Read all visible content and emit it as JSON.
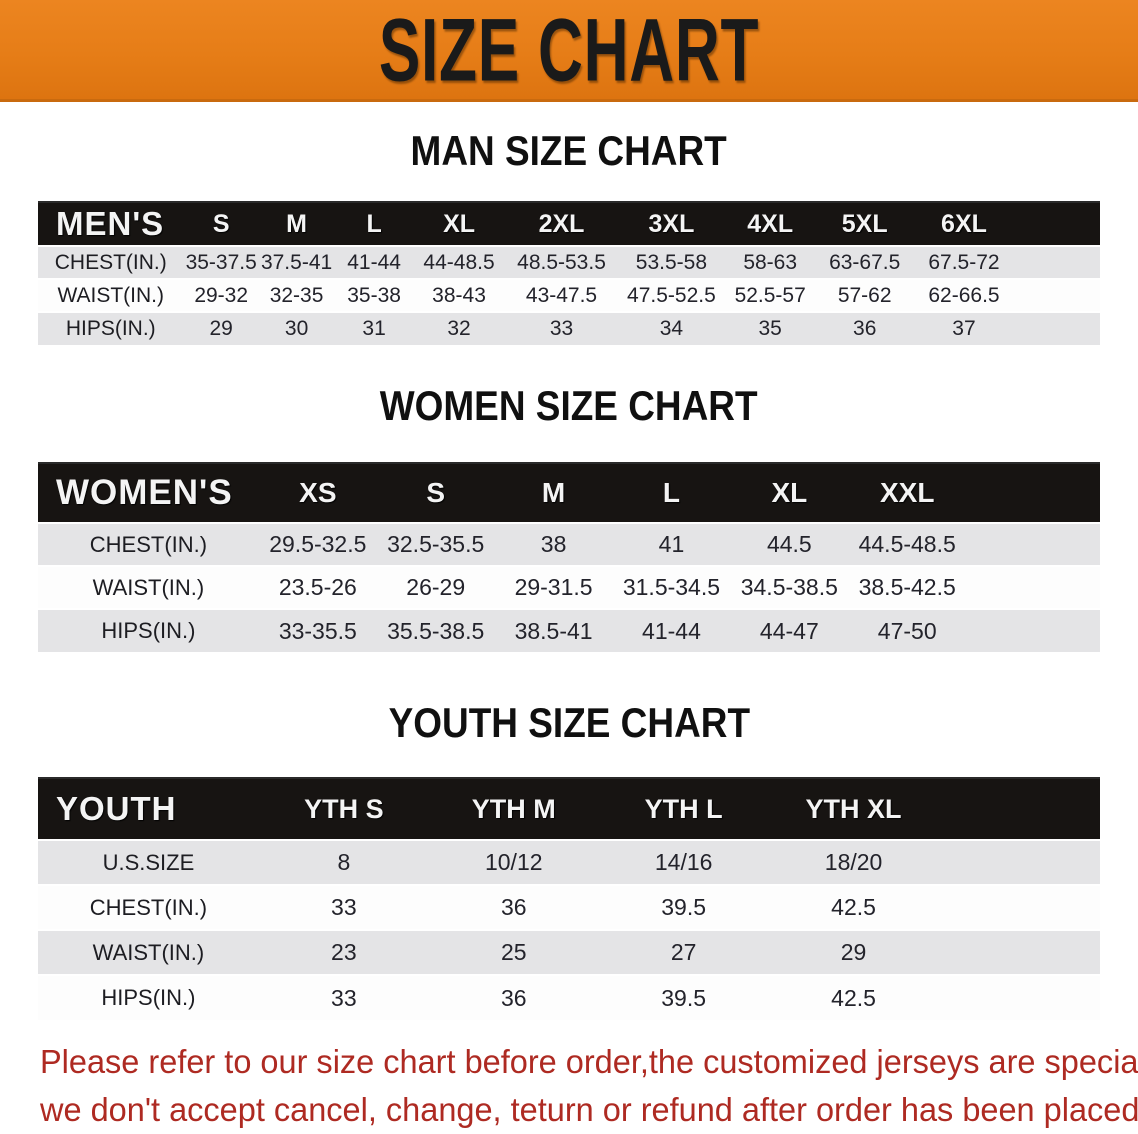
{
  "banner": {
    "title": "SIZE CHART"
  },
  "chart_data": [
    {
      "type": "table",
      "title": "MAN SIZE CHART",
      "corner_label": "MEN'S",
      "columns": [
        "S",
        "M",
        "L",
        "XL",
        "2XL",
        "3XL",
        "4XL",
        "5XL",
        "6XL"
      ],
      "rows": [
        {
          "label": "CHEST(IN.)",
          "values": [
            "35-37.5",
            "37.5-41",
            "41-44",
            "44-48.5",
            "48.5-53.5",
            "53.5-58",
            "58-63",
            "63-67.5",
            "67.5-72"
          ]
        },
        {
          "label": "WAIST(IN.)",
          "values": [
            "29-32",
            "32-35",
            "35-38",
            "38-43",
            "43-47.5",
            "47.5-52.5",
            "52.5-57",
            "57-62",
            "62-66.5"
          ]
        },
        {
          "label": "HIPS(IN.)",
          "values": [
            "29",
            "30",
            "31",
            "32",
            "33",
            "34",
            "35",
            "36",
            "37"
          ]
        }
      ]
    },
    {
      "type": "table",
      "title": "WOMEN SIZE CHART",
      "corner_label": "WOMEN'S",
      "columns": [
        "XS",
        "S",
        "M",
        "L",
        "XL",
        "XXL"
      ],
      "rows": [
        {
          "label": "CHEST(IN.)",
          "values": [
            "29.5-32.5",
            "32.5-35.5",
            "38",
            "41",
            "44.5",
            "44.5-48.5"
          ]
        },
        {
          "label": "WAIST(IN.)",
          "values": [
            "23.5-26",
            "26-29",
            "29-31.5",
            "31.5-34.5",
            "34.5-38.5",
            "38.5-42.5"
          ]
        },
        {
          "label": "HIPS(IN.)",
          "values": [
            "33-35.5",
            "35.5-38.5",
            "38.5-41",
            "41-44",
            "44-47",
            "47-50"
          ]
        }
      ]
    },
    {
      "type": "table",
      "title": "YOUTH SIZE CHART",
      "corner_label": "YOUTH",
      "columns": [
        "YTH S",
        "YTH M",
        "YTH L",
        "YTH XL"
      ],
      "rows": [
        {
          "label": "U.S.SIZE",
          "values": [
            "8",
            "10/12",
            "14/16",
            "18/20"
          ]
        },
        {
          "label": "CHEST(IN.)",
          "values": [
            "33",
            "36",
            "39.5",
            "42.5"
          ]
        },
        {
          "label": "WAIST(IN.)",
          "values": [
            "23",
            "25",
            "27",
            "29"
          ]
        },
        {
          "label": "HIPS(IN.)",
          "values": [
            "33",
            "36",
            "39.5",
            "42.5"
          ]
        }
      ]
    }
  ],
  "footer": {
    "line1": "Please refer to our size chart before order,the customized jerseys are special products,",
    "line2": "we don't accept cancel, change, teturn or refund after order has been placed!"
  },
  "colors": {
    "banner_orange": "#e67d17",
    "header_black": "#171412",
    "row_gray": "#e4e4e6",
    "footer_red": "#ae2a22"
  }
}
